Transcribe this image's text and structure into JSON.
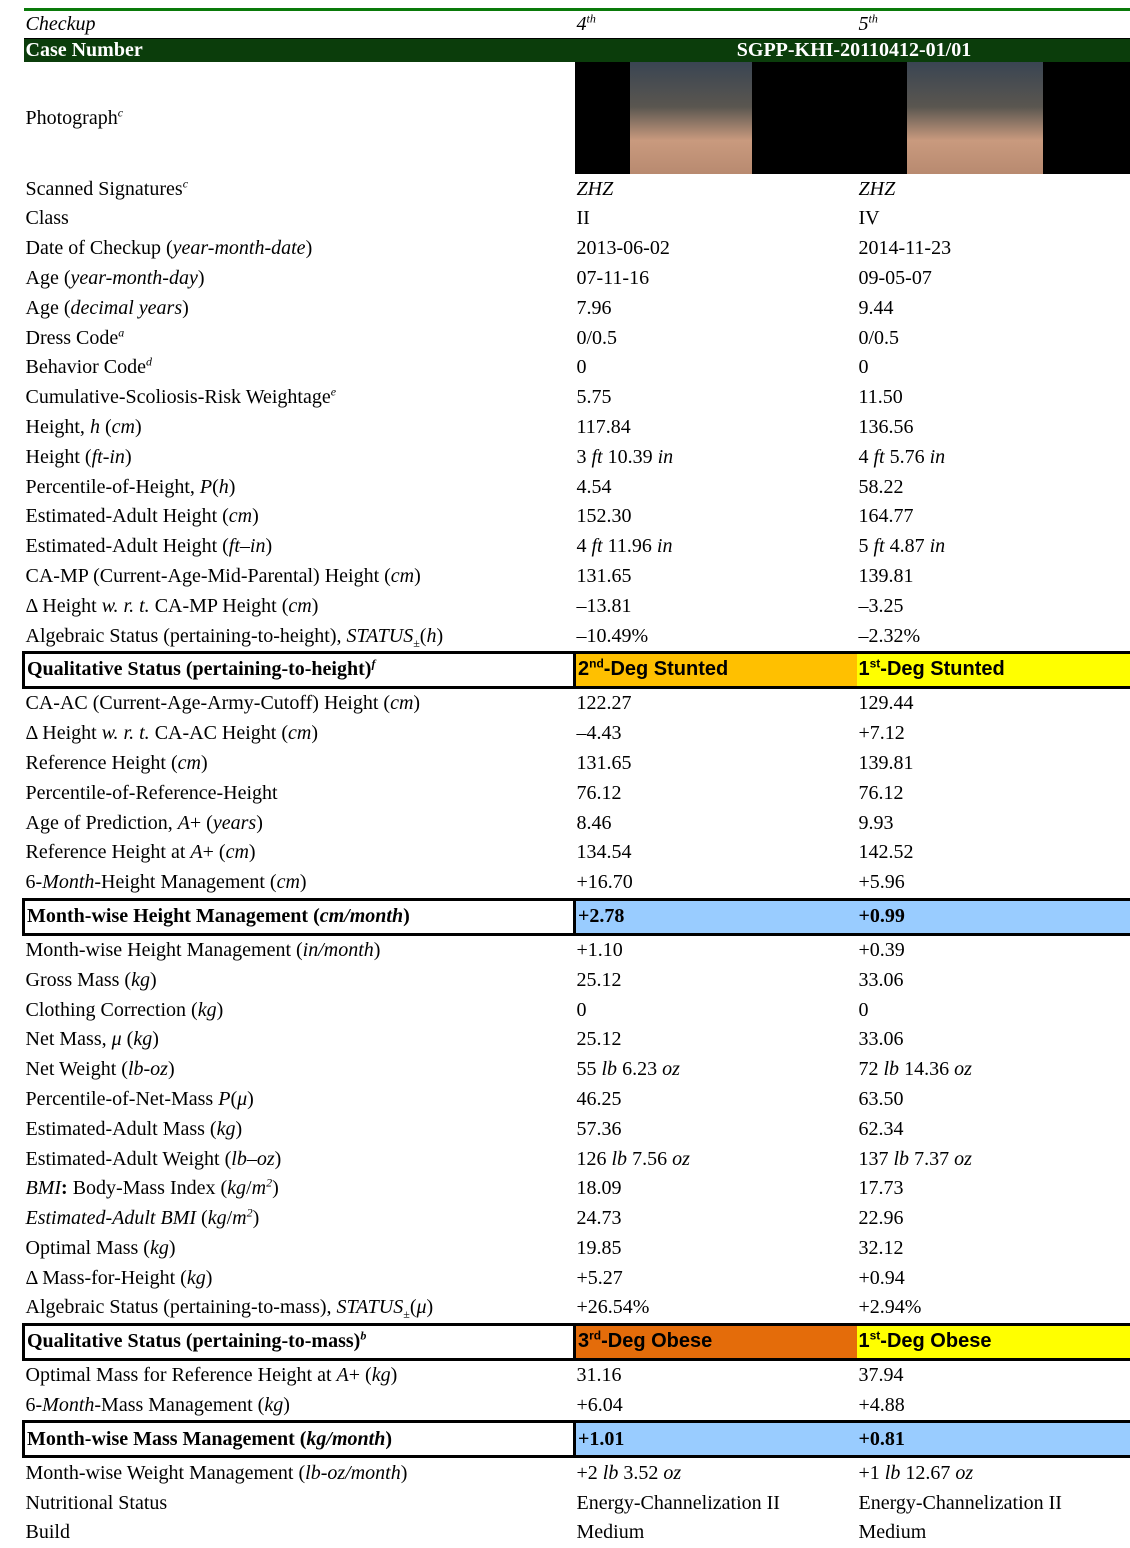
{
  "header": {
    "label": {
      "i": "Checkup"
    },
    "values": [
      [
        "4",
        {
          "sup": "th"
        }
      ],
      [
        "5",
        {
          "sup": "th"
        }
      ]
    ]
  },
  "case": {
    "label": "Case Number",
    "value": "SGPP-KHI-20110412-01/01"
  },
  "photograph": {
    "label": [
      "Photograph",
      {
        "sup": "c"
      }
    ]
  },
  "rows": [
    {
      "label": [
        "Scanned Signatures",
        {
          "sup": "c"
        }
      ],
      "values": [
        {
          "i": "ZHZ"
        },
        {
          "i": "ZHZ"
        }
      ]
    },
    {
      "label": "Class",
      "values": [
        "II",
        "IV"
      ]
    },
    {
      "label": [
        "Date of Checkup (",
        {
          "i": "year-month-date"
        },
        ")"
      ],
      "values": [
        "2013-06-02",
        "2014-11-23"
      ]
    },
    {
      "label": [
        "Age (",
        {
          "i": "year-month-day"
        },
        ")"
      ],
      "values": [
        "07-11-16",
        "09-05-07"
      ]
    },
    {
      "label": [
        "Age (",
        {
          "i": "decimal years"
        },
        ")"
      ],
      "values": [
        "7.96",
        "9.44"
      ]
    },
    {
      "label": [
        "Dress Code",
        {
          "sup": "a"
        }
      ],
      "values": [
        "0/0.5",
        "0/0.5"
      ]
    },
    {
      "label": [
        "Behavior Code",
        {
          "sup": "d"
        }
      ],
      "values": [
        "0",
        "0"
      ]
    },
    {
      "label": [
        "Cumulative-Scoliosis-Risk Weightage",
        {
          "sup": "e"
        }
      ],
      "values": [
        "5.75",
        "11.50"
      ]
    },
    {
      "label": [
        "Height, ",
        {
          "i": "h"
        },
        " (",
        {
          "i": "cm"
        },
        ")"
      ],
      "values": [
        "117.84",
        "136.56"
      ]
    },
    {
      "label": [
        "Height (",
        {
          "i": "ft-in"
        },
        ")"
      ],
      "values": [
        [
          "3 ",
          {
            "i": "ft"
          },
          " 10.39 ",
          {
            "i": "in"
          }
        ],
        [
          "4 ",
          {
            "i": "ft"
          },
          " 5.76 ",
          {
            "i": "in"
          }
        ]
      ]
    },
    {
      "label": [
        "Percentile-of-Height, ",
        {
          "i": "P"
        },
        "(",
        {
          "i": "h"
        },
        ")"
      ],
      "values": [
        "4.54",
        "58.22"
      ]
    },
    {
      "label": [
        "Estimated-Adult Height (",
        {
          "i": "cm"
        },
        ")"
      ],
      "values": [
        "152.30",
        "164.77"
      ]
    },
    {
      "label": [
        "Estimated-Adult Height (",
        {
          "i": "ft–in"
        },
        ")"
      ],
      "values": [
        [
          "4 ",
          {
            "i": "ft"
          },
          " 11.96 ",
          {
            "i": "in"
          }
        ],
        [
          "5 ",
          {
            "i": "ft"
          },
          " 4.87 ",
          {
            "i": "in"
          }
        ]
      ]
    },
    {
      "label": [
        "CA-MP (Current-Age-Mid-Parental) Height (",
        {
          "i": "cm"
        },
        ")"
      ],
      "values": [
        "131.65",
        "139.81"
      ]
    },
    {
      "label": [
        "Δ Height ",
        {
          "i": "w. r. t."
        },
        " CA-MP Height (",
        {
          "i": "cm"
        },
        ")"
      ],
      "values": [
        "–13.81",
        "–3.25"
      ]
    },
    {
      "label": [
        "Algebraic Status (pertaining-to-height), ",
        {
          "i": "STATUS"
        },
        {
          "sub": "±"
        },
        "(",
        {
          "i": "h"
        },
        ")"
      ],
      "values": [
        "–10.49%",
        "–2.32%"
      ]
    },
    {
      "label": [
        "Qualitative Status (pertaining-to-height)",
        {
          "sup": "f"
        }
      ],
      "values": [
        [
          "2",
          {
            "sup": "nd"
          },
          "-Deg Stunted"
        ],
        [
          "1",
          {
            "sup": "st"
          },
          "-Deg Stunted"
        ]
      ],
      "boxed": true,
      "fills": [
        "#ffc000",
        "#ffff00"
      ],
      "value_font": "sans-serif"
    },
    {
      "label": [
        "CA-AC (Current-Age-Army-Cutoff) Height (",
        {
          "i": "cm"
        },
        ")"
      ],
      "values": [
        "122.27",
        "129.44"
      ]
    },
    {
      "label": [
        "Δ Height ",
        {
          "i": "w. r. t."
        },
        " CA-AC Height (",
        {
          "i": "cm"
        },
        ")"
      ],
      "values": [
        "–4.43",
        "+7.12"
      ]
    },
    {
      "label": [
        "Reference Height (",
        {
          "i": "cm"
        },
        ")"
      ],
      "values": [
        "131.65",
        "139.81"
      ]
    },
    {
      "label": "Percentile-of-Reference-Height",
      "values": [
        "76.12",
        "76.12"
      ]
    },
    {
      "label": [
        "Age of Prediction, ",
        {
          "i": "A"
        },
        "+ (",
        {
          "i": "years"
        },
        ")"
      ],
      "values": [
        "8.46",
        "9.93"
      ]
    },
    {
      "label": [
        "Reference Height at ",
        {
          "i": "A"
        },
        "+ (",
        {
          "i": "cm"
        },
        ")"
      ],
      "values": [
        "134.54",
        "142.52"
      ]
    },
    {
      "label": [
        "6-",
        {
          "i": "Month"
        },
        "-Height Management (",
        {
          "i": "cm"
        },
        ")"
      ],
      "values": [
        "+16.70",
        "+5.96"
      ]
    },
    {
      "label": [
        "Month-wise Height Management (",
        {
          "i": "cm/month"
        },
        ")"
      ],
      "values": [
        "+2.78",
        "+0.99"
      ],
      "boxed": true,
      "fills": [
        "#99ccff",
        "#99ccff"
      ]
    },
    {
      "label": [
        "Month-wise Height Management (",
        {
          "i": "in/month"
        },
        ")"
      ],
      "values": [
        "+1.10",
        "+0.39"
      ]
    },
    {
      "label": [
        "Gross Mass (",
        {
          "i": "kg"
        },
        ")"
      ],
      "values": [
        "25.12",
        "33.06"
      ]
    },
    {
      "label": [
        "Clothing Correction (",
        {
          "i": "kg"
        },
        ")"
      ],
      "values": [
        "0",
        "0"
      ]
    },
    {
      "label": [
        "Net Mass, ",
        {
          "i": "μ"
        },
        " (",
        {
          "i": "kg"
        },
        ")"
      ],
      "values": [
        "25.12",
        "33.06"
      ]
    },
    {
      "label": [
        "Net Weight (",
        {
          "i": "lb-oz"
        },
        ")"
      ],
      "values": [
        [
          "55 ",
          {
            "i": "lb"
          },
          " 6.23 ",
          {
            "i": "oz"
          }
        ],
        [
          "72 ",
          {
            "i": "lb"
          },
          " 14.36 ",
          {
            "i": "oz"
          }
        ]
      ]
    },
    {
      "label": [
        "Percentile-of-Net-Mass ",
        {
          "i": "P"
        },
        "(",
        {
          "i": "μ"
        },
        ")"
      ],
      "values": [
        "46.25",
        "63.50"
      ]
    },
    {
      "label": [
        "Estimated-Adult Mass (",
        {
          "i": "kg"
        },
        ")"
      ],
      "values": [
        "57.36",
        "62.34"
      ]
    },
    {
      "label": [
        "Estimated-Adult Weight (",
        {
          "i": "lb–oz"
        },
        ")"
      ],
      "values": [
        [
          "126 ",
          {
            "i": "lb"
          },
          " 7.56 ",
          {
            "i": "oz"
          }
        ],
        [
          "137 ",
          {
            "i": "lb"
          },
          " 7.37 ",
          {
            "i": "oz"
          }
        ]
      ]
    },
    {
      "label": [
        {
          "i": "BMI"
        },
        {
          "b": ":"
        },
        " Body-Mass Index (",
        {
          "i": "kg"
        },
        "/",
        {
          "i": "m"
        },
        {
          "sup": "2"
        },
        ")"
      ],
      "values": [
        "18.09",
        "17.73"
      ]
    },
    {
      "label": [
        {
          "i": "Estimated-Adult BMI"
        },
        " (",
        {
          "i": "kg"
        },
        "/",
        {
          "i": "m"
        },
        {
          "sup": "2"
        },
        ")"
      ],
      "values": [
        "24.73",
        "22.96"
      ]
    },
    {
      "label": [
        "Optimal Mass (",
        {
          "i": "kg"
        },
        ")"
      ],
      "values": [
        "19.85",
        "32.12"
      ]
    },
    {
      "label": [
        "Δ Mass-for-Height (",
        {
          "i": "kg"
        },
        ")"
      ],
      "values": [
        "+5.27",
        "+0.94"
      ]
    },
    {
      "label": [
        "Algebraic Status (pertaining-to-mass), ",
        {
          "i": "STATUS"
        },
        {
          "sub": "±"
        },
        "(",
        {
          "i": "μ"
        },
        ")"
      ],
      "values": [
        "+26.54%",
        "+2.94%"
      ]
    },
    {
      "label": [
        "Qualitative Status (pertaining-to-mass)",
        {
          "sup": "b"
        }
      ],
      "values": [
        [
          "3",
          {
            "sup": "rd"
          },
          "-Deg Obese"
        ],
        [
          "1",
          {
            "sup": "st"
          },
          "-Deg Obese"
        ]
      ],
      "boxed": true,
      "fills": [
        "#e46c0a",
        "#ffff00"
      ],
      "value_font": "sans-serif"
    },
    {
      "label": [
        "Optimal Mass for Reference Height at ",
        {
          "i": "A"
        },
        "+ (",
        {
          "i": "kg"
        },
        ")"
      ],
      "values": [
        "31.16",
        "37.94"
      ]
    },
    {
      "label": [
        "6-",
        {
          "i": "Month"
        },
        "-Mass Management (",
        {
          "i": "kg"
        },
        ")"
      ],
      "values": [
        "+6.04",
        "+4.88"
      ]
    },
    {
      "label": [
        "Month-wise Mass Management (",
        {
          "i": "kg/month"
        },
        ")"
      ],
      "values": [
        "+1.01",
        "+0.81"
      ],
      "boxed": true,
      "fills": [
        "#99ccff",
        "#99ccff"
      ]
    },
    {
      "label": [
        "Month-wise Weight Management (",
        {
          "i": "lb-oz/month"
        },
        ")"
      ],
      "values": [
        [
          "+2 ",
          {
            "i": "lb"
          },
          " 3.52 ",
          {
            "i": "oz"
          }
        ],
        [
          "+1 ",
          {
            "i": "lb"
          },
          " 12.67 ",
          {
            "i": "oz"
          }
        ]
      ]
    },
    {
      "label": "Nutritional Status",
      "values": [
        "Energy-Channelization II",
        "Energy-Channelization II"
      ]
    },
    {
      "label": "Build",
      "values": [
        "Medium",
        "Medium"
      ]
    }
  ]
}
